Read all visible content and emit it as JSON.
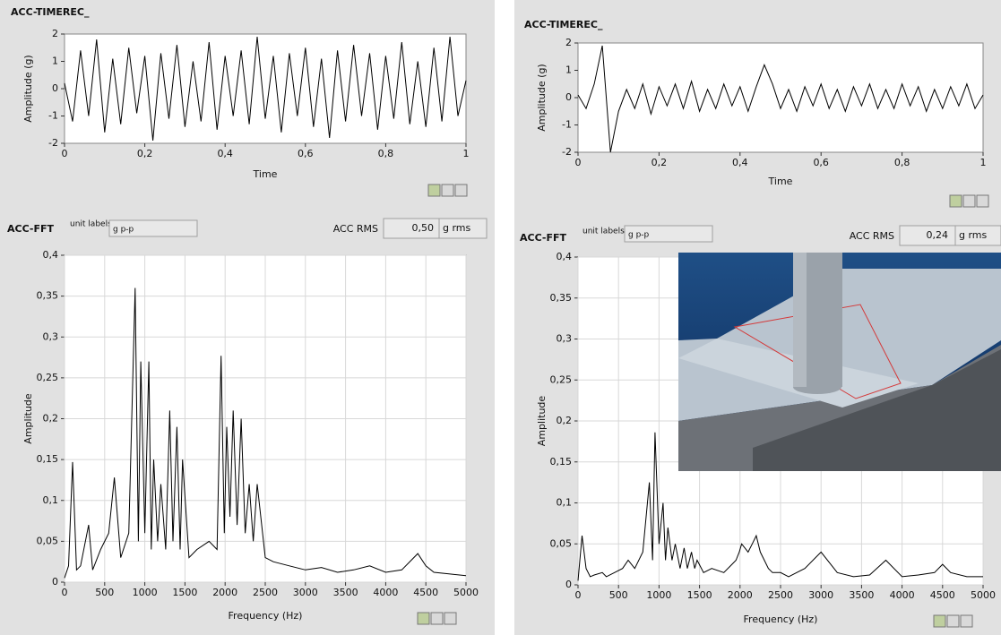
{
  "chart_data": [
    {
      "type": "line",
      "title": "ACC-TIMEREC_",
      "x_label": "Time",
      "y_label": "Amplitude (g)",
      "grid": false,
      "color": "#000000",
      "xlim": [
        0,
        1
      ],
      "xticks": [
        0,
        {
          "value": 0.2,
          "label": "0,2"
        },
        {
          "value": 0.4,
          "label": "0,4"
        },
        {
          "value": 0.6,
          "label": "0,6"
        },
        {
          "value": 0.8,
          "label": "0,8"
        },
        1
      ],
      "ylim": [
        -2,
        2
      ],
      "yticks": [
        -2,
        -1,
        0,
        1,
        2
      ],
      "x": [
        0,
        0.02,
        0.04,
        0.06,
        0.08,
        0.1,
        0.12,
        0.14,
        0.16,
        0.18,
        0.2,
        0.22,
        0.24,
        0.26,
        0.28,
        0.3,
        0.32,
        0.34,
        0.36,
        0.38,
        0.4,
        0.42,
        0.44,
        0.46,
        0.48,
        0.5,
        0.52,
        0.54,
        0.56,
        0.58,
        0.6,
        0.62,
        0.64,
        0.66,
        0.68,
        0.7,
        0.72,
        0.74,
        0.76,
        0.78,
        0.8,
        0.82,
        0.84,
        0.86,
        0.88,
        0.9,
        0.92,
        0.94,
        0.96,
        0.98,
        1
      ],
      "values": [
        0.2,
        -1.2,
        1.4,
        -1.0,
        1.8,
        -1.6,
        1.1,
        -1.3,
        1.5,
        -0.9,
        1.2,
        -1.9,
        1.3,
        -1.1,
        1.6,
        -1.4,
        1.0,
        -1.2,
        1.7,
        -1.5,
        1.2,
        -1.0,
        1.4,
        -1.3,
        1.9,
        -1.1,
        1.2,
        -1.6,
        1.3,
        -1.0,
        1.5,
        -1.4,
        1.1,
        -1.8,
        1.4,
        -1.2,
        1.6,
        -1.0,
        1.3,
        -1.5,
        1.2,
        -1.1,
        1.7,
        -1.3,
        1.0,
        -1.4,
        1.5,
        -1.2,
        1.9,
        -1.0,
        0.3
      ]
    },
    {
      "type": "line",
      "title": "ACC-FFT",
      "x_label": "Frequency (Hz)",
      "y_label": "Amplitude",
      "grid": true,
      "color": "#000000",
      "xlim": [
        0,
        5000
      ],
      "xticks": [
        0,
        500,
        1000,
        1500,
        2000,
        2500,
        3000,
        3500,
        4000,
        4500,
        5000
      ],
      "ylim": [
        0,
        0.4
      ],
      "yticks": [
        0,
        {
          "value": 0.05,
          "label": "0,05"
        },
        {
          "value": 0.1,
          "label": "0,1"
        },
        {
          "value": 0.15,
          "label": "0,15"
        },
        {
          "value": 0.2,
          "label": "0,2"
        },
        {
          "value": 0.25,
          "label": "0,25"
        },
        {
          "value": 0.3,
          "label": "0,3"
        },
        {
          "value": 0.35,
          "label": "0,35"
        },
        {
          "value": 0.4,
          "label": "0,4"
        }
      ],
      "x": [
        0,
        50,
        100,
        150,
        200,
        300,
        350,
        450,
        550,
        620,
        700,
        800,
        880,
        920,
        950,
        1000,
        1050,
        1080,
        1110,
        1160,
        1200,
        1260,
        1310,
        1350,
        1400,
        1440,
        1470,
        1550,
        1650,
        1800,
        1900,
        1950,
        1990,
        2020,
        2060,
        2100,
        2150,
        2200,
        2250,
        2300,
        2350,
        2400,
        2500,
        2600,
        2800,
        3000,
        3200,
        3400,
        3600,
        3800,
        4000,
        4200,
        4400,
        4500,
        4600,
        4800,
        5000
      ],
      "values": [
        0.005,
        0.02,
        0.147,
        0.015,
        0.02,
        0.07,
        0.015,
        0.04,
        0.06,
        0.128,
        0.03,
        0.06,
        0.36,
        0.05,
        0.27,
        0.06,
        0.27,
        0.04,
        0.15,
        0.05,
        0.12,
        0.04,
        0.21,
        0.05,
        0.19,
        0.04,
        0.15,
        0.03,
        0.04,
        0.05,
        0.04,
        0.277,
        0.06,
        0.19,
        0.08,
        0.21,
        0.07,
        0.2,
        0.06,
        0.12,
        0.05,
        0.12,
        0.03,
        0.025,
        0.02,
        0.015,
        0.018,
        0.012,
        0.015,
        0.02,
        0.012,
        0.015,
        0.035,
        0.02,
        0.012,
        0.01,
        0.008
      ]
    },
    {
      "type": "line",
      "title": "ACC-TIMEREC_",
      "x_label": "Time",
      "y_label": "Amplitude (g)",
      "grid": false,
      "color": "#000000",
      "xlim": [
        0,
        1
      ],
      "xticks": [
        0,
        {
          "value": 0.2,
          "label": "0,2"
        },
        {
          "value": 0.4,
          "label": "0,4"
        },
        {
          "value": 0.6,
          "label": "0,6"
        },
        {
          "value": 0.8,
          "label": "0,8"
        },
        1
      ],
      "ylim": [
        -2,
        2
      ],
      "yticks": [
        -2,
        -1,
        0,
        1,
        2
      ],
      "x": [
        0,
        0.02,
        0.04,
        0.06,
        0.08,
        0.1,
        0.12,
        0.14,
        0.16,
        0.18,
        0.2,
        0.22,
        0.24,
        0.26,
        0.28,
        0.3,
        0.32,
        0.34,
        0.36,
        0.38,
        0.4,
        0.42,
        0.44,
        0.46,
        0.48,
        0.5,
        0.52,
        0.54,
        0.56,
        0.58,
        0.6,
        0.62,
        0.64,
        0.66,
        0.68,
        0.7,
        0.72,
        0.74,
        0.76,
        0.78,
        0.8,
        0.82,
        0.84,
        0.86,
        0.88,
        0.9,
        0.92,
        0.94,
        0.96,
        0.98,
        1
      ],
      "values": [
        0.1,
        -0.4,
        0.5,
        1.9,
        -2.0,
        -0.5,
        0.3,
        -0.4,
        0.5,
        -0.6,
        0.4,
        -0.3,
        0.5,
        -0.4,
        0.6,
        -0.5,
        0.3,
        -0.4,
        0.5,
        -0.3,
        0.4,
        -0.5,
        0.4,
        1.2,
        0.5,
        -0.4,
        0.3,
        -0.5,
        0.4,
        -0.3,
        0.5,
        -0.4,
        0.3,
        -0.5,
        0.4,
        -0.3,
        0.5,
        -0.4,
        0.3,
        -0.4,
        0.5,
        -0.3,
        0.4,
        -0.5,
        0.3,
        -0.4,
        0.4,
        -0.3,
        0.5,
        -0.4,
        0.1
      ]
    },
    {
      "type": "line",
      "title": "ACC-FFT",
      "x_label": "Frequency (Hz)",
      "y_label": "Amplitude",
      "grid": true,
      "color": "#000000",
      "xlim": [
        0,
        5000
      ],
      "xticks": [
        0,
        500,
        1000,
        1500,
        2000,
        2500,
        3000,
        3500,
        4000,
        4500,
        5000
      ],
      "ylim": [
        0,
        0.4
      ],
      "yticks": [
        0,
        {
          "value": 0.05,
          "label": "0,05"
        },
        {
          "value": 0.1,
          "label": "0,1"
        },
        {
          "value": 0.15,
          "label": "0,15"
        },
        {
          "value": 0.2,
          "label": "0,2"
        },
        {
          "value": 0.25,
          "label": "0,25"
        },
        {
          "value": 0.3,
          "label": "0,3"
        },
        {
          "value": 0.35,
          "label": "0,35"
        },
        {
          "value": 0.4,
          "label": "0,4"
        }
      ],
      "x": [
        0,
        50,
        100,
        150,
        200,
        300,
        350,
        450,
        550,
        620,
        700,
        800,
        880,
        920,
        950,
        1000,
        1050,
        1080,
        1110,
        1160,
        1200,
        1260,
        1310,
        1350,
        1400,
        1440,
        1470,
        1550,
        1650,
        1800,
        1900,
        1950,
        1990,
        2020,
        2060,
        2100,
        2150,
        2200,
        2250,
        2300,
        2350,
        2400,
        2500,
        2600,
        2800,
        3000,
        3200,
        3400,
        3600,
        3800,
        4000,
        4200,
        4400,
        4500,
        4600,
        4800,
        5000
      ],
      "values": [
        0.005,
        0.06,
        0.02,
        0.01,
        0.012,
        0.015,
        0.01,
        0.015,
        0.02,
        0.03,
        0.02,
        0.04,
        0.125,
        0.03,
        0.186,
        0.05,
        0.1,
        0.03,
        0.07,
        0.03,
        0.05,
        0.02,
        0.045,
        0.02,
        0.04,
        0.02,
        0.03,
        0.015,
        0.02,
        0.015,
        0.025,
        0.03,
        0.04,
        0.05,
        0.045,
        0.04,
        0.05,
        0.06,
        0.04,
        0.03,
        0.02,
        0.015,
        0.015,
        0.01,
        0.02,
        0.04,
        0.015,
        0.01,
        0.012,
        0.03,
        0.01,
        0.012,
        0.015,
        0.025,
        0.015,
        0.01,
        0.01
      ]
    }
  ],
  "controls": [
    {
      "unit_labels_caption": "unit labels",
      "unit_labels": "g p-p",
      "rms_label": "ACC RMS",
      "rms_value": "0,50",
      "rms_unit": "g rms"
    },
    {
      "unit_labels_caption": "unit labels",
      "unit_labels": "g p-p",
      "rms_label": "ACC RMS",
      "rms_value": "0,24",
      "rms_unit": "g rms"
    }
  ]
}
